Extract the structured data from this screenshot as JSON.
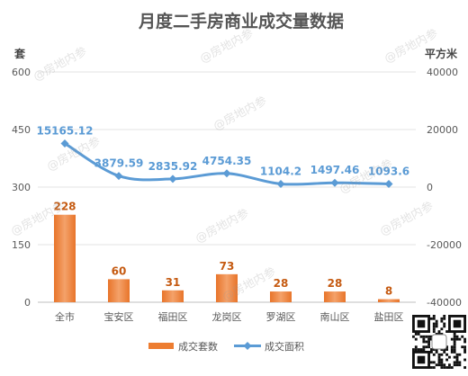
{
  "chart_data": {
    "type": "bar+line",
    "title": "月度二手房商业成交量数据",
    "left_axis": {
      "unit": "套",
      "ticks": [
        0,
        150,
        300,
        450,
        600
      ],
      "ylim": [
        0,
        600
      ]
    },
    "right_axis": {
      "unit": "平方米",
      "ticks": [
        -40000,
        -20000,
        0,
        20000,
        40000
      ],
      "ylim": [
        -40000,
        40000
      ]
    },
    "categories": [
      "全市",
      "宝安区",
      "福田区",
      "龙岗区",
      "罗湖区",
      "南山区",
      "盐田区"
    ],
    "series": [
      {
        "name": "成交套数",
        "type": "bar",
        "axis": "left",
        "color": "#ED7D31",
        "values": [
          228,
          60,
          31,
          73,
          28,
          28,
          8
        ],
        "labels": [
          "228",
          "60",
          "31",
          "73",
          "28",
          "28",
          "8"
        ]
      },
      {
        "name": "成交面积",
        "type": "line",
        "axis": "right",
        "color": "#5B9BD5",
        "values": [
          15165.12,
          3879.59,
          2835.92,
          4754.35,
          1104.2,
          1497.46,
          1093.6
        ],
        "labels": [
          "15165.12",
          "3879.59",
          "2835.92",
          "4754.35",
          "1104.2",
          "1497.46",
          "1093.6"
        ]
      }
    ],
    "legend_position": "bottom",
    "gridlines": true
  },
  "watermark": "@房地内参"
}
